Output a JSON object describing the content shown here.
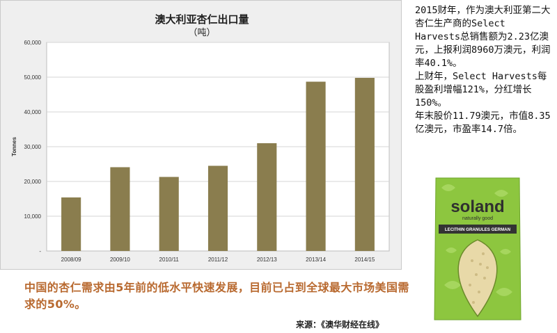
{
  "chart_data": {
    "type": "bar",
    "title": "澳大利亚杏仁出口量",
    "subtitle": "（吨）",
    "ylabel": "Tonnes",
    "xlabel": "",
    "ylim": [
      0,
      60000
    ],
    "yticks": [
      0,
      10000,
      20000,
      30000,
      40000,
      50000,
      60000
    ],
    "ytick_labels": [
      "-",
      "10,000",
      "20,000",
      "30,000",
      "40,000",
      "50,000",
      "60,000"
    ],
    "categories": [
      "2008/09",
      "2009/10",
      "2010/11",
      "2011/12",
      "2012/13",
      "2013/14",
      "2014/15"
    ],
    "values": [
      15400,
      24100,
      21300,
      24500,
      31000,
      48700,
      49800
    ],
    "bar_color": "#8a7d4e",
    "grid": true,
    "legend": "none"
  },
  "side_text": {
    "paragraphs": [
      "2015财年，作为澳大利亚第二大杏仁生产商的Select Harvests总销售额为2.23亿澳元，上报利润8960万澳元，利润率40.1%。",
      "上财年，Select Harvests每股盈利增幅121%，分红增长150%。",
      "年末股价11.79澳元，市值8.35亿澳元，市盈率14.7倍。"
    ]
  },
  "caption": {
    "text": "中国的杏仁需求由5年前的低水平快速发展，目前已占到全球最大市场美国需求的50%。",
    "color": "#b8692f"
  },
  "source": {
    "text": "来源：《澳华财经在线》"
  },
  "product": {
    "brand": "soland",
    "tagline": "naturally good",
    "product_name": "LECITHIN GRANULES GERMAN",
    "colors": {
      "pack_green": "#8dc63f",
      "pack_dark": "#3a3a3a",
      "granules": "#e8d9a8"
    }
  }
}
